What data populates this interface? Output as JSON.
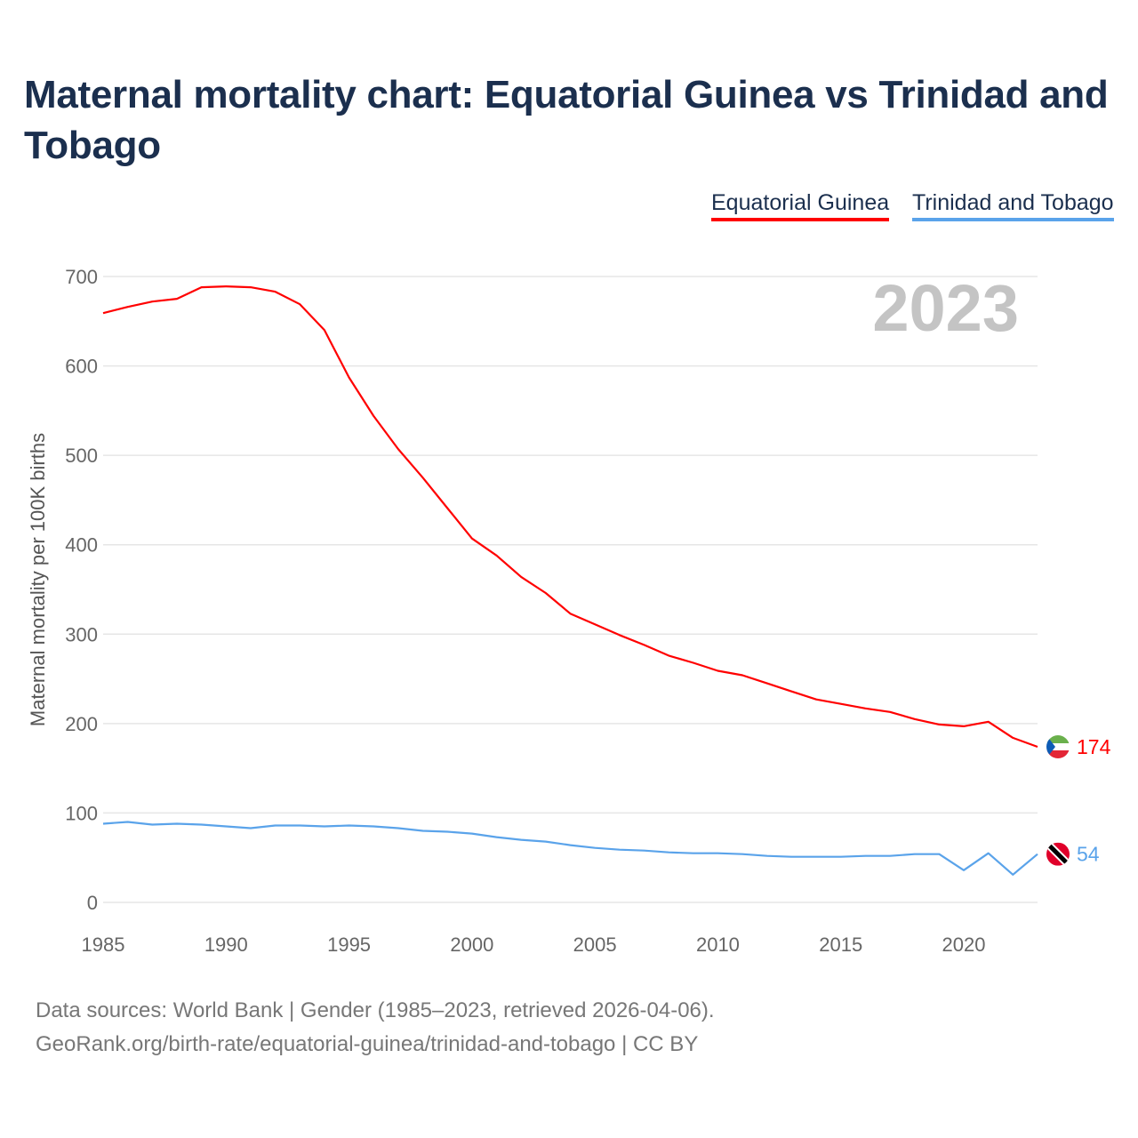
{
  "chart_data": {
    "type": "line",
    "title": "Maternal mortality chart: Equatorial Guinea vs Trinidad and Tobago",
    "ylabel": "Maternal mortality per 100K births",
    "xlabel": "",
    "year_label": "2023",
    "xlim": [
      1985,
      2023
    ],
    "ylim": [
      0,
      700
    ],
    "x_ticks": [
      1985,
      1990,
      1995,
      2000,
      2005,
      2010,
      2015,
      2020
    ],
    "y_ticks": [
      0,
      100,
      200,
      300,
      400,
      500,
      600,
      700
    ],
    "grid": true,
    "legend_placement": "top-right",
    "x": [
      1985,
      1986,
      1987,
      1988,
      1989,
      1990,
      1991,
      1992,
      1993,
      1994,
      1995,
      1996,
      1997,
      1998,
      1999,
      2000,
      2001,
      2002,
      2003,
      2004,
      2005,
      2006,
      2007,
      2008,
      2009,
      2010,
      2011,
      2012,
      2013,
      2014,
      2015,
      2016,
      2017,
      2018,
      2019,
      2020,
      2021,
      2022,
      2023
    ],
    "series": [
      {
        "name": "Equatorial Guinea",
        "color": "#ff0000",
        "end_label": "174",
        "values": [
          659,
          666,
          672,
          675,
          688,
          689,
          688,
          683,
          669,
          640,
          587,
          544,
          507,
          475,
          441,
          407,
          388,
          364,
          346,
          323,
          311,
          299,
          288,
          276,
          268,
          259,
          254,
          245,
          236,
          227,
          222,
          217,
          213,
          205,
          199,
          197,
          202,
          184,
          174
        ]
      },
      {
        "name": "Trinidad and Tobago",
        "color": "#5aa3ea",
        "end_label": "54",
        "values": [
          88,
          90,
          87,
          88,
          87,
          85,
          83,
          86,
          86,
          85,
          86,
          85,
          83,
          80,
          79,
          77,
          73,
          70,
          68,
          64,
          61,
          59,
          58,
          56,
          55,
          55,
          54,
          52,
          51,
          51,
          51,
          52,
          52,
          54,
          54,
          36,
          55,
          31,
          54
        ]
      }
    ]
  },
  "footer": {
    "line1": "Data sources: World Bank | Gender (1985–2023, retrieved 2026-04-06).",
    "line2": "GeoRank.org/birth-rate/equatorial-guinea/trinidad-and-tobago | CC BY"
  }
}
